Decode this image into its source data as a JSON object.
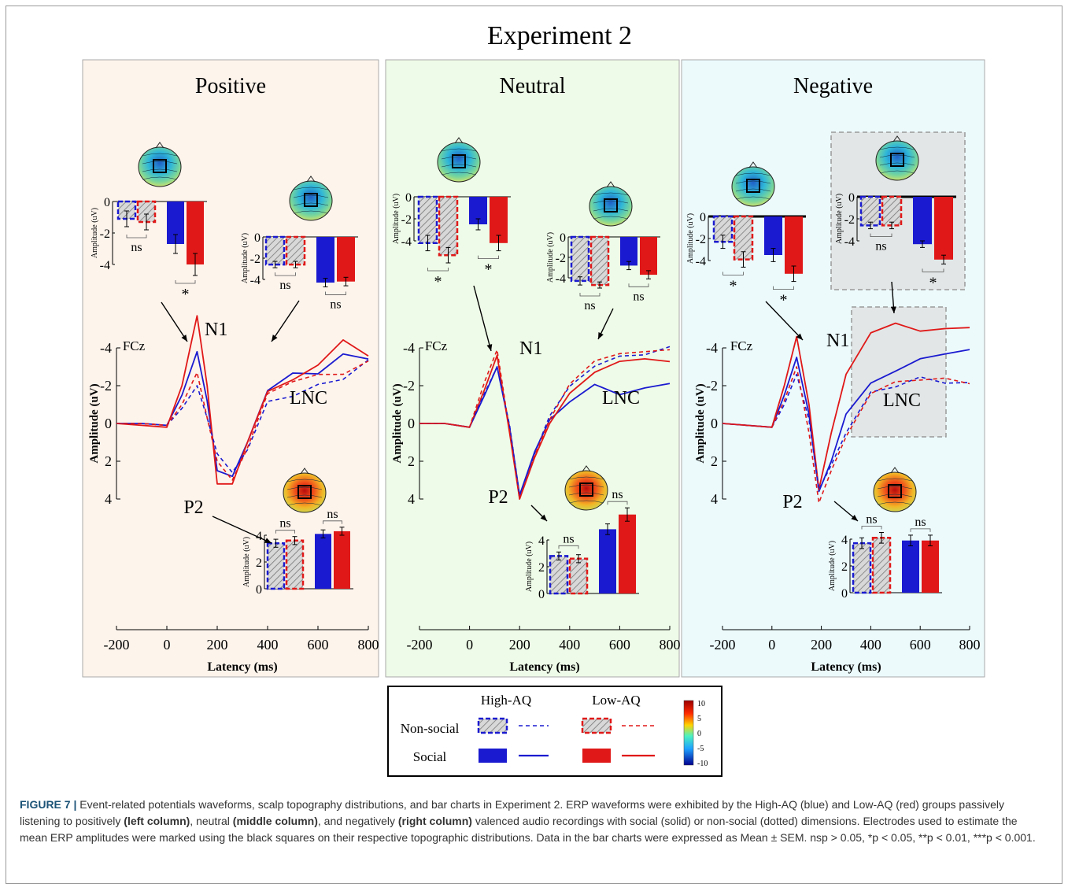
{
  "figure_title": "Experiment 2",
  "panels": [
    {
      "title": "Positive",
      "background": "#fdf4ec"
    },
    {
      "title": "Neutral",
      "background": "#eefbe8"
    },
    {
      "title": "Negative",
      "background": "#ecfafc"
    }
  ],
  "labels": {
    "fcz": "FCz",
    "n1": "N1",
    "p2": "P2",
    "lnc": "LNC",
    "amp_axis": "Amplitude (uV)",
    "bar_axis": "Amplitude (uV)",
    "x_axis": "Latency (ms)",
    "ns": "ns",
    "star": "*"
  },
  "legend": {
    "high_aq": "High-AQ",
    "low_aq": "Low-AQ",
    "non_social": "Non-social",
    "social": "Social",
    "colorbar_ticks": [
      "10",
      "5",
      "0",
      "-5",
      "-10"
    ]
  },
  "colors": {
    "high_aq": "#1a1ad0",
    "low_aq": "#e01818",
    "axis": "#000000"
  },
  "chart_data": [
    {
      "type": "line",
      "title": "Positive",
      "xlabel": "Latency (ms)",
      "ylabel": "Amplitude (uV)",
      "xlim": [
        -200,
        800
      ],
      "ylim": [
        -4,
        4
      ],
      "y_inverted": true,
      "xticks": [
        -200,
        0,
        200,
        400,
        600,
        800
      ],
      "yticks": [
        -4,
        -2,
        0,
        2,
        4
      ],
      "x": [
        -200,
        -100,
        0,
        60,
        120,
        160,
        200,
        260,
        320,
        400,
        500,
        600,
        700,
        800
      ],
      "series": [
        {
          "name": "High-AQ Social",
          "values": [
            0,
            0,
            0.1,
            -1.5,
            -3.8,
            -1.2,
            2.5,
            2.8,
            1.0,
            -1.8,
            -2.6,
            -2.7,
            -3.6,
            -3.5
          ]
        },
        {
          "name": "Low-AQ Social",
          "values": [
            0,
            0.1,
            0.2,
            -2.0,
            -5.7,
            -2.0,
            3.2,
            3.2,
            1.0,
            -1.6,
            -2.4,
            -3.0,
            -4.5,
            -3.5
          ]
        },
        {
          "name": "High-AQ Non-social",
          "values": [
            0,
            0,
            0.1,
            -0.8,
            -2.0,
            -0.3,
            1.6,
            2.6,
            1.4,
            -1.0,
            -1.6,
            -1.9,
            -2.5,
            -3.2
          ]
        },
        {
          "name": "Low-AQ Non-social",
          "values": [
            0,
            0,
            0.1,
            -1.0,
            -2.7,
            -0.3,
            2.0,
            3.0,
            1.3,
            -1.5,
            -2.3,
            -2.5,
            -2.7,
            -3.2
          ]
        }
      ],
      "bars_n1": {
        "ylim": [
          -4,
          0
        ],
        "yticks": [
          0,
          -2,
          -4
        ],
        "categories": [
          "High-AQ Non-social",
          "Low-AQ Non-social",
          "High-AQ Social",
          "Low-AQ Social"
        ],
        "values": [
          -1.1,
          -1.3,
          -2.7,
          -4.0
        ],
        "errors": [
          0.5,
          0.5,
          0.6,
          0.7
        ],
        "tests": [
          "ns",
          "*"
        ]
      },
      "bars_lnc": {
        "ylim": [
          -4,
          0
        ],
        "yticks": [
          0,
          -2,
          -4
        ],
        "categories": [
          "High-AQ Non-social",
          "Low-AQ Non-social",
          "High-AQ Social",
          "Low-AQ Social"
        ],
        "values": [
          -2.6,
          -2.6,
          -4.3,
          -4.2
        ],
        "errors": [
          0.3,
          0.3,
          0.4,
          0.4
        ],
        "tests": [
          "ns",
          "ns"
        ]
      },
      "bars_p2": {
        "ylim": [
          0,
          4
        ],
        "yticks": [
          0,
          2,
          4
        ],
        "categories": [
          "High-AQ Non-social",
          "Low-AQ Non-social",
          "High-AQ Social",
          "Low-AQ Social"
        ],
        "values": [
          3.4,
          3.6,
          4.1,
          4.3
        ],
        "errors": [
          0.3,
          0.3,
          0.3,
          0.3
        ],
        "tests": [
          "ns",
          "ns"
        ]
      }
    },
    {
      "type": "line",
      "title": "Neutral",
      "xlabel": "Latency (ms)",
      "ylabel": "Amplitude (uV)",
      "xlim": [
        -200,
        800
      ],
      "ylim": [
        -4,
        4
      ],
      "y_inverted": true,
      "xticks": [
        -200,
        0,
        200,
        400,
        600,
        800
      ],
      "yticks": [
        -4,
        -2,
        0,
        2,
        4
      ],
      "x": [
        -200,
        -100,
        0,
        60,
        110,
        160,
        200,
        260,
        320,
        400,
        500,
        600,
        700,
        800
      ],
      "series": [
        {
          "name": "High-AQ Social",
          "values": [
            0,
            0,
            0.2,
            -1.5,
            -3.0,
            0.2,
            3.8,
            1.5,
            -0.2,
            -1.2,
            -2.0,
            -1.6,
            -1.8,
            -2.2
          ]
        },
        {
          "name": "Low-AQ Social",
          "values": [
            0,
            0,
            0.2,
            -1.8,
            -3.6,
            0.5,
            4.0,
            1.8,
            0,
            -1.5,
            -2.8,
            -3.2,
            -3.5,
            -3.2
          ]
        },
        {
          "name": "High-AQ Non-social",
          "values": [
            0,
            0,
            0.2,
            -1.6,
            -3.0,
            0.1,
            3.8,
            1.6,
            -0.4,
            -1.8,
            -3.2,
            -3.4,
            -3.8,
            -3.9
          ]
        },
        {
          "name": "Low-AQ Non-social",
          "values": [
            0,
            0,
            0.2,
            -2.2,
            -3.9,
            0.4,
            4.0,
            1.7,
            -0.2,
            -2.0,
            -3.4,
            -3.6,
            -3.9,
            -3.8
          ]
        }
      ],
      "bars_n1": {
        "ylim": [
          -4,
          0
        ],
        "yticks": [
          0,
          -2,
          -4
        ],
        "categories": [
          "High-AQ Non-social",
          "Low-AQ Non-social",
          "High-AQ Social",
          "Low-AQ Social"
        ],
        "values": [
          -4.2,
          -5.3,
          -2.5,
          -4.2
        ],
        "errors": [
          0.7,
          0.7,
          0.5,
          0.7
        ],
        "tests": [
          "*",
          "*"
        ]
      },
      "bars_lnc": {
        "ylim": [
          -4,
          0
        ],
        "yticks": [
          0,
          -2,
          -4
        ],
        "categories": [
          "High-AQ Non-social",
          "Low-AQ Non-social",
          "High-AQ Social",
          "Low-AQ Social"
        ],
        "values": [
          -4.3,
          -4.7,
          -2.8,
          -3.7
        ],
        "errors": [
          0.4,
          0.3,
          0.4,
          0.4
        ],
        "tests": [
          "ns",
          "ns"
        ]
      },
      "bars_p2": {
        "ylim": [
          0,
          4
        ],
        "yticks": [
          0,
          2,
          4
        ],
        "categories": [
          "High-AQ Non-social",
          "Low-AQ Non-social",
          "High-AQ Social",
          "Low-AQ Social"
        ],
        "values": [
          2.8,
          2.6,
          4.8,
          5.9
        ],
        "errors": [
          0.3,
          0.3,
          0.4,
          0.5
        ],
        "tests": [
          "ns",
          "ns"
        ]
      }
    },
    {
      "type": "line",
      "title": "Negative",
      "xlabel": "Latency (ms)",
      "ylabel": "Amplitude (uV)",
      "xlim": [
        -200,
        800
      ],
      "ylim": [
        -4,
        4
      ],
      "y_inverted": true,
      "xticks": [
        -200,
        0,
        200,
        400,
        600,
        800
      ],
      "yticks": [
        -4,
        -2,
        0,
        2,
        4
      ],
      "x": [
        -200,
        -100,
        0,
        50,
        100,
        150,
        190,
        240,
        300,
        400,
        500,
        600,
        700,
        800
      ],
      "series": [
        {
          "name": "High-AQ Social",
          "values": [
            0,
            0.1,
            0.2,
            -1.5,
            -3.5,
            -0.5,
            3.6,
            2.0,
            -0.5,
            -2.2,
            -2.7,
            -3.5,
            -3.6,
            -4.0
          ]
        },
        {
          "name": "Low-AQ Social",
          "values": [
            0,
            0.1,
            0.2,
            -2.0,
            -4.6,
            -1.0,
            3.5,
            0.5,
            -2.6,
            -4.7,
            -5.4,
            -4.8,
            -5.1,
            -5.0
          ]
        },
        {
          "name": "High-AQ Non-social",
          "values": [
            0,
            0.1,
            0.2,
            -1.0,
            -2.6,
            -0.2,
            3.5,
            2.2,
            0.5,
            -1.5,
            -2.1,
            -2.3,
            -2.3,
            -2.0
          ]
        },
        {
          "name": "Low-AQ Non-social",
          "values": [
            0,
            0.1,
            0.2,
            -1.2,
            -3.0,
            0.5,
            4.2,
            2.5,
            0.7,
            -1.5,
            -2.3,
            -2.2,
            -2.5,
            -2.0
          ]
        }
      ],
      "bars_n1": {
        "ylim": [
          -4,
          0
        ],
        "yticks": [
          0,
          -2,
          -4
        ],
        "categories": [
          "High-AQ Non-social",
          "Low-AQ Non-social",
          "High-AQ Social",
          "Low-AQ Social"
        ],
        "values": [
          -2.3,
          -3.9,
          -3.5,
          -5.2
        ],
        "errors": [
          0.6,
          0.7,
          0.6,
          0.7
        ],
        "tests": [
          "*",
          "*"
        ]
      },
      "bars_lnc": {
        "ylim": [
          -4,
          0
        ],
        "yticks": [
          0,
          -2,
          -4
        ],
        "categories": [
          "High-AQ Non-social",
          "Low-AQ Non-social",
          "High-AQ Social",
          "Low-AQ Social"
        ],
        "values": [
          -2.6,
          -2.6,
          -4.3,
          -5.7
        ],
        "errors": [
          0.3,
          0.3,
          0.3,
          0.4
        ],
        "tests": [
          "ns",
          "*"
        ]
      },
      "bars_p2": {
        "ylim": [
          0,
          4
        ],
        "yticks": [
          0,
          2,
          4
        ],
        "categories": [
          "High-AQ Non-social",
          "Low-AQ Non-social",
          "High-AQ Social",
          "Low-AQ Social"
        ],
        "values": [
          3.7,
          4.1,
          3.9,
          3.9
        ],
        "errors": [
          0.4,
          0.4,
          0.4,
          0.4
        ],
        "tests": [
          "ns",
          "ns"
        ]
      }
    }
  ],
  "caption": {
    "lead": "FIGURE 7 |",
    "text1": " Event-related potentials waveforms, scalp topography distributions, and bar charts in Experiment 2. ERP waveforms were exhibited by the High-AQ (blue) and Low-AQ (red) groups passively listening to positively ",
    "bold1": "(left column)",
    "text2": ", neutral ",
    "bold2": "(middle column)",
    "text3": ", and negatively ",
    "bold3": "(right column)",
    "text4": " valenced audio recordings with social (solid) or non-social (dotted) dimensions. Electrodes used to estimate the mean ERP amplitudes were marked using the black squares on their respective topographic distributions. Data in the bar charts were expressed as Mean ± SEM. ",
    "stats": "nsp > 0.05, *p < 0.05, **p < 0.01, ***p < 0.001."
  }
}
